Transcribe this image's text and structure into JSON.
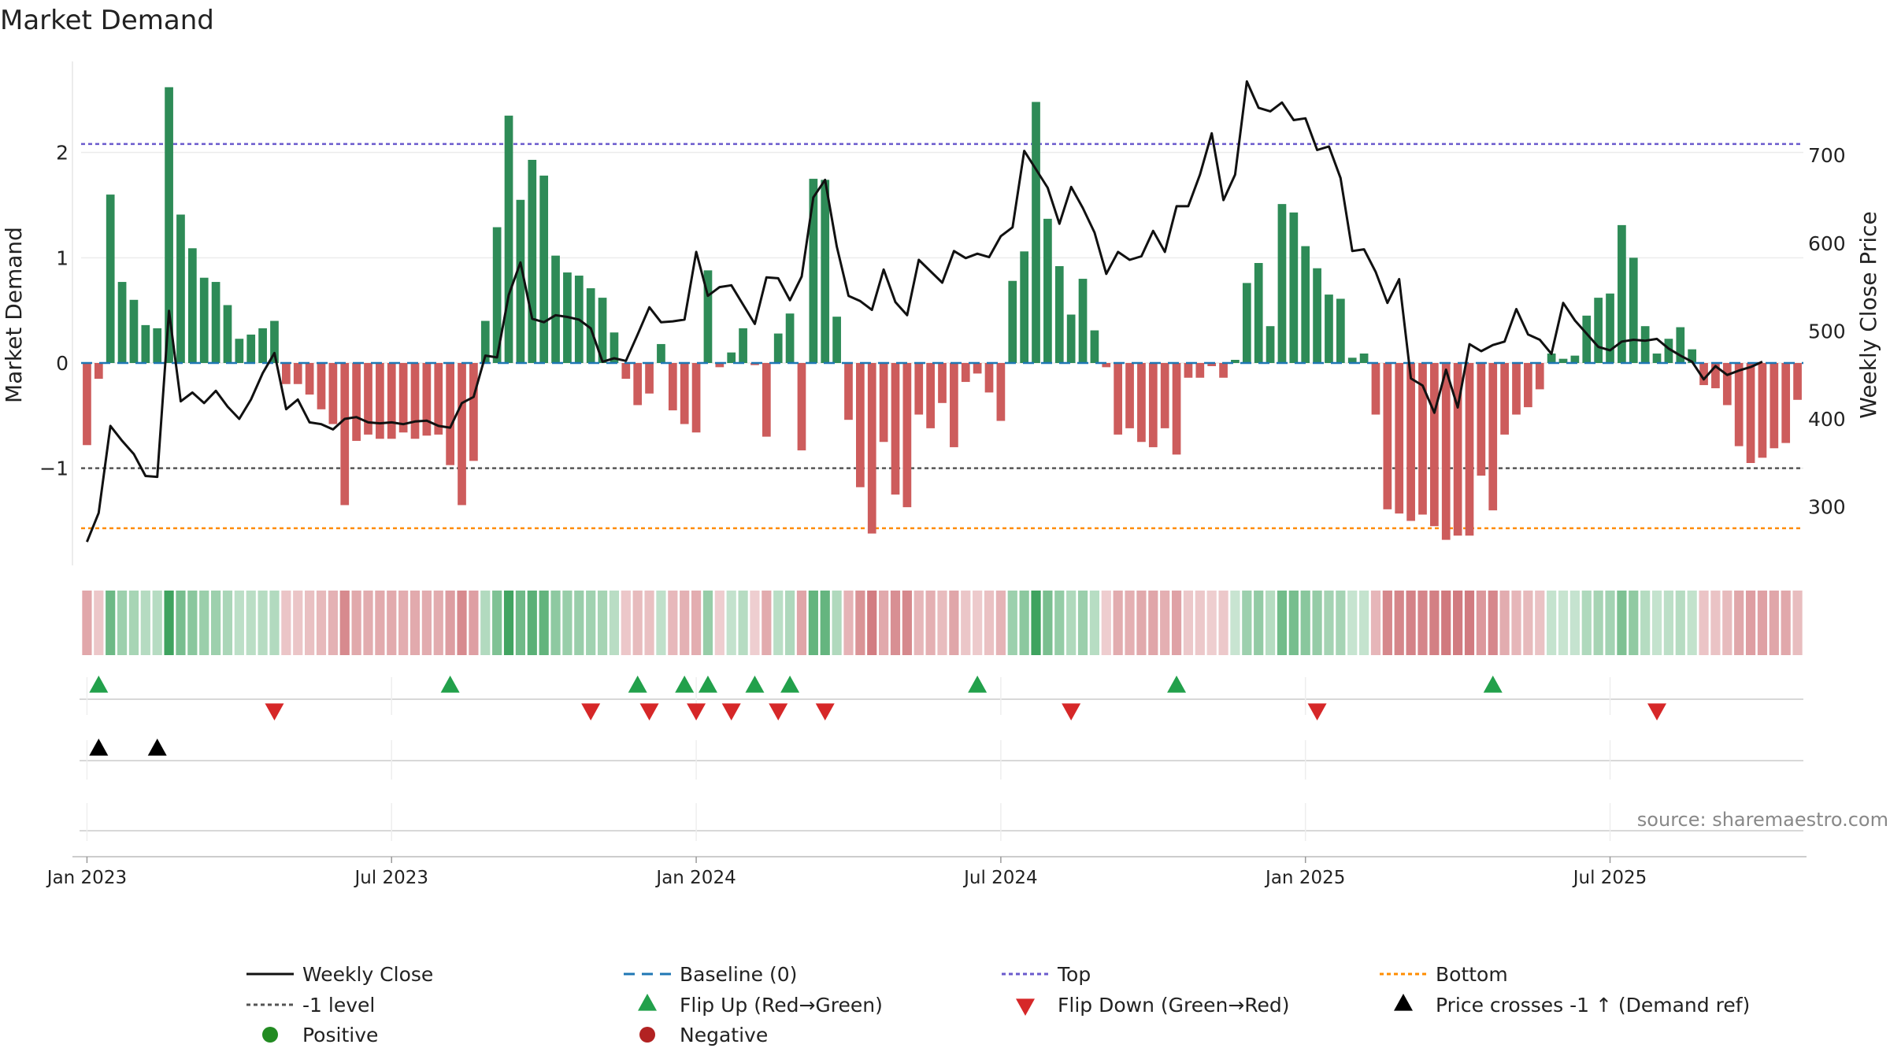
{
  "chart_data": {
    "type": "bar",
    "title": "Market Demand",
    "ylabel_left": "Market Demand",
    "ylabel_right": "Weekly Close Price",
    "source": "source: sharemaestro.com",
    "ylim_left": [
      -1.9,
      2.85
    ],
    "ylim_right": [
      236,
      805
    ],
    "left_ticks": [
      {
        "v": 2,
        "label": "2"
      },
      {
        "v": 1,
        "label": "1"
      },
      {
        "v": 0,
        "label": "0"
      },
      {
        "v": -1,
        "label": "−1"
      }
    ],
    "right_ticks": [
      {
        "v": 700,
        "label": "700"
      },
      {
        "v": 600,
        "label": "600"
      },
      {
        "v": 500,
        "label": "500"
      },
      {
        "v": 400,
        "label": "400"
      },
      {
        "v": 300,
        "label": "300"
      }
    ],
    "x_ticks": [
      {
        "week": 1,
        "label": "Jan 2023"
      },
      {
        "week": 27,
        "label": "Jul 2023"
      },
      {
        "week": 53,
        "label": "Jan 2024"
      },
      {
        "week": 79,
        "label": "Jul 2024"
      },
      {
        "week": 105,
        "label": "Jan 2025"
      },
      {
        "week": 131,
        "label": "Jul 2025"
      }
    ],
    "levels": {
      "top": 2.08,
      "minus_one": -1.0,
      "bottom": -1.57,
      "baseline": 0
    },
    "colors": {
      "positive": "#2e8b57",
      "negative": "#cd5c5c",
      "price": "#111111",
      "baseline": "#1f77b4",
      "top": "#6a5acd",
      "minus_one": "#555555",
      "bottom": "#ff8c00",
      "flip_up": "#22a04b",
      "flip_down": "#d62728",
      "cross": "#000000",
      "positive_dot": "#228b22",
      "negative_dot": "#b22222"
    },
    "demand": [
      -0.78,
      -0.15,
      1.6,
      0.77,
      0.6,
      0.36,
      0.33,
      2.62,
      1.41,
      1.09,
      0.81,
      0.77,
      0.55,
      0.23,
      0.27,
      0.33,
      0.4,
      -0.2,
      -0.2,
      -0.3,
      -0.44,
      -0.58,
      -1.35,
      -0.74,
      -0.68,
      -0.72,
      -0.72,
      -0.66,
      -0.72,
      -0.69,
      -0.68,
      -0.97,
      -1.35,
      -0.93,
      0.4,
      1.29,
      2.35,
      1.55,
      1.93,
      1.78,
      1.02,
      0.86,
      0.83,
      0.71,
      0.62,
      0.29,
      -0.15,
      -0.4,
      -0.29,
      0.18,
      -0.45,
      -0.58,
      -0.66,
      0.88,
      -0.04,
      0.1,
      0.33,
      -0.02,
      -0.7,
      0.28,
      0.47,
      -0.83,
      1.75,
      1.74,
      0.44,
      -0.54,
      -1.18,
      -1.62,
      -0.75,
      -1.25,
      -1.37,
      -0.49,
      -0.62,
      -0.38,
      -0.8,
      -0.18,
      -0.1,
      -0.28,
      -0.55,
      0.78,
      1.06,
      2.48,
      1.37,
      0.92,
      0.46,
      0.8,
      0.31,
      -0.04,
      -0.68,
      -0.62,
      -0.75,
      -0.8,
      -0.62,
      -0.87,
      -0.14,
      -0.14,
      -0.03,
      -0.14,
      0.03,
      0.76,
      0.95,
      0.35,
      1.51,
      1.43,
      1.11,
      0.9,
      0.65,
      0.61,
      0.05,
      0.09,
      -0.49,
      -1.39,
      -1.43,
      -1.5,
      -1.44,
      -1.55,
      -1.68,
      -1.64,
      -1.64,
      -1.07,
      -1.4,
      -0.68,
      -0.49,
      -0.42,
      -0.25,
      0.09,
      0.04,
      0.07,
      0.45,
      0.62,
      0.66,
      1.31,
      1.0,
      0.35,
      0.09,
      0.23,
      0.34,
      0.13,
      -0.21,
      -0.24,
      -0.4,
      -0.79,
      -0.95,
      -0.9,
      -0.81,
      -0.76,
      -0.35
    ],
    "price": [
      260,
      293,
      392,
      375,
      360,
      335,
      334,
      523,
      420,
      430,
      418,
      432,
      414,
      400,
      422,
      452,
      475,
      411,
      422,
      396,
      394,
      388,
      400,
      402,
      396,
      395,
      396,
      394,
      397,
      398,
      392,
      390,
      418,
      425,
      472,
      470,
      541,
      578,
      514,
      510,
      518,
      516,
      513,
      503,
      465,
      469,
      466,
      496,
      527,
      510,
      511,
      513,
      590,
      540,
      550,
      552,
      530,
      508,
      561,
      560,
      535,
      562,
      652,
      672,
      596,
      540,
      534,
      524,
      570,
      533,
      518,
      581,
      568,
      555,
      591,
      583,
      588,
      584,
      608,
      618,
      705,
      684,
      663,
      622,
      664,
      640,
      612,
      565,
      590,
      581,
      585,
      614,
      590,
      642,
      642,
      678,
      725,
      649,
      678,
      784,
      754,
      750,
      760,
      740,
      742,
      706,
      710,
      674,
      591,
      593,
      567,
      532,
      559,
      446,
      438,
      407,
      456,
      413,
      485,
      477,
      484,
      488,
      525,
      496,
      490,
      474,
      532,
      512,
      497,
      482,
      478,
      488,
      490,
      489,
      491,
      480,
      472,
      465,
      445,
      460,
      450,
      455,
      459,
      465
    ],
    "flip_up_weeks": [
      2,
      32,
      48,
      52,
      54,
      58,
      61,
      77,
      94,
      121
    ],
    "flip_down_weeks": [
      17,
      44,
      49,
      53,
      56,
      60,
      64,
      85,
      106,
      135
    ],
    "price_cross_weeks": [
      2,
      7
    ],
    "legend": [
      {
        "label": "Weekly Close",
        "marker": "line-solid",
        "color": "#111111"
      },
      {
        "label": "Baseline (0)",
        "marker": "line-dashed",
        "color": "#1f77b4"
      },
      {
        "label": "Top",
        "marker": "line-dotted",
        "color": "#6a5acd"
      },
      {
        "label": "Bottom",
        "marker": "line-dotted",
        "color": "#ff8c00"
      },
      {
        "label": "-1 level",
        "marker": "line-dotted",
        "color": "#555555"
      },
      {
        "label": "Flip Up (Red→Green)",
        "marker": "tri-up",
        "color": "#22a04b"
      },
      {
        "label": "Flip Down (Green→Red)",
        "marker": "tri-down",
        "color": "#d62728"
      },
      {
        "label": "Price crosses -1 ↑ (Demand ref)",
        "marker": "tri-up",
        "color": "#000000"
      },
      {
        "label": "Positive",
        "marker": "circle",
        "color": "#228b22"
      },
      {
        "label": "Negative",
        "marker": "circle",
        "color": "#b22222"
      }
    ]
  }
}
